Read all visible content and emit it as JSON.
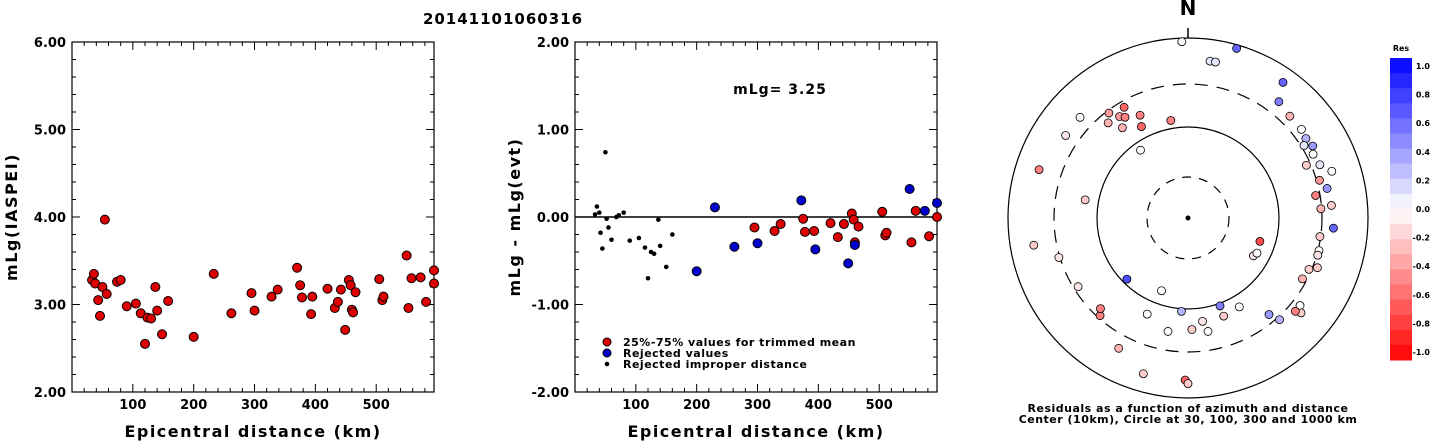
{
  "title": "20141101060316",
  "chart_data": [
    {
      "type": "scatter",
      "xlabel": "Epicentral distance (km)",
      "ylabel": "mLg(IASPEI)",
      "xlim": [
        0,
        595
      ],
      "ylim": [
        2.0,
        6.0
      ],
      "x_ticks": [
        "100",
        "200",
        "300",
        "400",
        "500"
      ],
      "y_ticks": [
        "2.00",
        "3.00",
        "4.00",
        "5.00",
        "6.00"
      ],
      "series": [
        {
          "color": "#dd0000",
          "points": [
            [
              33,
              3.28
            ],
            [
              36,
              3.35
            ],
            [
              38,
              3.24
            ],
            [
              43,
              3.05
            ],
            [
              46,
              2.87
            ],
            [
              50,
              3.2
            ],
            [
              54,
              3.97
            ],
            [
              57,
              3.12
            ],
            [
              74,
              3.26
            ],
            [
              80,
              3.28
            ],
            [
              90,
              2.98
            ],
            [
              105,
              3.01
            ],
            [
              113,
              2.9
            ],
            [
              120,
              2.55
            ],
            [
              124,
              2.85
            ],
            [
              130,
              2.84
            ],
            [
              137,
              3.2
            ],
            [
              140,
              2.93
            ],
            [
              148,
              2.66
            ],
            [
              158,
              3.04
            ],
            [
              200,
              2.63
            ],
            [
              233,
              3.35
            ],
            [
              262,
              2.9
            ],
            [
              295,
              3.13
            ],
            [
              300,
              2.93
            ],
            [
              328,
              3.09
            ],
            [
              338,
              3.17
            ],
            [
              370,
              3.42
            ],
            [
              375,
              3.22
            ],
            [
              378,
              3.08
            ],
            [
              393,
              2.89
            ],
            [
              395,
              3.09
            ],
            [
              420,
              3.18
            ],
            [
              432,
              2.96
            ],
            [
              437,
              3.03
            ],
            [
              442,
              3.17
            ],
            [
              449,
              2.71
            ],
            [
              455,
              3.28
            ],
            [
              458,
              3.22
            ],
            [
              460,
              2.94
            ],
            [
              462,
              2.91
            ],
            [
              466,
              3.14
            ],
            [
              505,
              3.29
            ],
            [
              510,
              3.05
            ],
            [
              512,
              3.09
            ],
            [
              550,
              3.56
            ],
            [
              553,
              2.96
            ],
            [
              558,
              3.3
            ],
            [
              573,
              3.31
            ],
            [
              582,
              3.03
            ],
            [
              595,
              3.39
            ],
            [
              595,
              3.24
            ]
          ]
        }
      ]
    },
    {
      "type": "scatter",
      "xlabel": "Epicentral distance (km)",
      "ylabel": "mLg - mLg(evt)",
      "xlim": [
        0,
        595
      ],
      "ylim": [
        -2.0,
        2.0
      ],
      "x_ticks": [
        "100",
        "200",
        "300",
        "400",
        "500"
      ],
      "y_ticks": [
        "-2.00",
        "-1.00",
        "0.00",
        "1.00",
        "2.00"
      ],
      "annotation": "mLg= 3.25",
      "reference_line": 0.0,
      "legend": [
        "25%-75% values for trimmed mean",
        "Rejected values",
        "Rejected improper distance"
      ],
      "series": [
        {
          "name": "25%-75% values for trimmed mean",
          "color": "#dd0000",
          "points": [
            [
              295,
              -0.12
            ],
            [
              328,
              -0.16
            ],
            [
              338,
              -0.08
            ],
            [
              375,
              -0.02
            ],
            [
              378,
              -0.17
            ],
            [
              393,
              -0.16
            ],
            [
              420,
              -0.07
            ],
            [
              432,
              -0.23
            ],
            [
              442,
              -0.08
            ],
            [
              455,
              0.04
            ],
            [
              458,
              -0.03
            ],
            [
              460,
              -0.29
            ],
            [
              466,
              -0.11
            ],
            [
              505,
              0.06
            ],
            [
              510,
              -0.21
            ],
            [
              512,
              -0.18
            ],
            [
              553,
              -0.29
            ],
            [
              560,
              0.07
            ],
            [
              582,
              -0.22
            ],
            [
              595,
              0.0
            ]
          ]
        },
        {
          "name": "Rejected values",
          "color": "#0000cc",
          "points": [
            [
              200,
              -0.62
            ],
            [
              230,
              0.11
            ],
            [
              262,
              -0.34
            ],
            [
              300,
              -0.3
            ],
            [
              372,
              0.19
            ],
            [
              395,
              -0.37
            ],
            [
              449,
              -0.53
            ],
            [
              460,
              -0.32
            ],
            [
              550,
              0.32
            ],
            [
              575,
              0.07
            ],
            [
              595,
              0.16
            ]
          ]
        },
        {
          "name": "Rejected improper distance",
          "color": "#000000",
          "points": [
            [
              33,
              0.03
            ],
            [
              36,
              0.12
            ],
            [
              40,
              0.05
            ],
            [
              42,
              -0.18
            ],
            [
              45,
              -0.36
            ],
            [
              50,
              0.74
            ],
            [
              52,
              -0.02
            ],
            [
              55,
              -0.12
            ],
            [
              60,
              -0.26
            ],
            [
              68,
              0.0
            ],
            [
              72,
              0.02
            ],
            [
              80,
              0.05
            ],
            [
              90,
              -0.27
            ],
            [
              105,
              -0.24
            ],
            [
              115,
              -0.35
            ],
            [
              120,
              -0.7
            ],
            [
              125,
              -0.4
            ],
            [
              130,
              -0.42
            ],
            [
              137,
              -0.03
            ],
            [
              140,
              -0.33
            ],
            [
              150,
              -0.57
            ],
            [
              160,
              -0.2
            ]
          ]
        }
      ]
    },
    {
      "type": "scatter",
      "subtype": "polar",
      "north_label": "N",
      "caption_line1": "Residuals as a function of azimuth and distance",
      "caption_line2": "Center (10km), Circle at 30, 100, 300 and 1000 km",
      "colorbar_title": "Res",
      "colorbar_ticks": [
        "1.0",
        "0.8",
        "0.6",
        "0.4",
        "0.2",
        "0.0",
        "-0.2",
        "-0.4",
        "-0.6",
        "-0.8",
        "-1.0"
      ],
      "stations": [
        {
          "az": -2,
          "r": 0.98,
          "res": 0.0
        },
        {
          "az": 16,
          "r": 0.98,
          "res": 0.6
        },
        {
          "az": 8,
          "r": 0.88,
          "res": 0.1
        },
        {
          "az": 10,
          "r": 0.88,
          "res": 0.1
        },
        {
          "az": 35,
          "r": 0.92,
          "res": 0.6
        },
        {
          "az": 38,
          "r": 0.82,
          "res": 0.5
        },
        {
          "az": 45,
          "r": 0.8,
          "res": -0.3
        },
        {
          "az": 52,
          "r": 0.8,
          "res": 0.0
        },
        {
          "az": 56,
          "r": 0.79,
          "res": 0.3
        },
        {
          "az": 58,
          "r": 0.76,
          "res": 0.1
        },
        {
          "az": 60,
          "r": 0.8,
          "res": 0.4
        },
        {
          "az": 63,
          "r": 0.78,
          "res": 0.0
        },
        {
          "az": 66,
          "r": 0.72,
          "res": -0.2
        },
        {
          "az": 68,
          "r": 0.79,
          "res": 0.1
        },
        {
          "az": 72,
          "r": 0.84,
          "res": 0.0
        },
        {
          "az": 74,
          "r": 0.76,
          "res": -0.4
        },
        {
          "az": 78,
          "r": 0.79,
          "res": 0.4
        },
        {
          "az": 80,
          "r": 0.72,
          "res": -0.5
        },
        {
          "az": 85,
          "r": 0.8,
          "res": -0.2
        },
        {
          "az": 86,
          "r": 0.74,
          "res": -0.3
        },
        {
          "az": 94,
          "r": 0.81,
          "res": 0.6
        },
        {
          "az": 98,
          "r": 0.74,
          "res": -0.2
        },
        {
          "az": 104,
          "r": 0.75,
          "res": 0.0
        },
        {
          "az": 106,
          "r": 0.75,
          "res": -0.1
        },
        {
          "az": 111,
          "r": 0.77,
          "res": -0.2
        },
        {
          "az": 113,
          "r": 0.73,
          "res": -0.2
        },
        {
          "az": 118,
          "r": 0.72,
          "res": -0.3
        },
        {
          "az": 128,
          "r": 0.79,
          "res": 0.0
        },
        {
          "az": 130,
          "r": 0.82,
          "res": -0.2
        },
        {
          "az": 131,
          "r": 0.79,
          "res": -0.5
        },
        {
          "az": 138,
          "r": 0.76,
          "res": 0.3
        },
        {
          "az": 140,
          "r": 0.7,
          "res": 0.4
        },
        {
          "az": 181,
          "r": 0.9,
          "res": -0.6
        },
        {
          "az": 180,
          "r": 0.92,
          "res": -0.2
        },
        {
          "az": 196,
          "r": 0.9,
          "res": -0.2
        },
        {
          "az": 208,
          "r": 0.82,
          "res": -0.3
        },
        {
          "az": 222,
          "r": 0.73,
          "res": -0.5
        },
        {
          "az": 224,
          "r": 0.7,
          "res": -0.5
        },
        {
          "az": 238,
          "r": 0.72,
          "res": -0.1
        },
        {
          "az": 253,
          "r": 0.75,
          "res": -0.1
        },
        {
          "az": 260,
          "r": 0.87,
          "res": -0.2
        },
        {
          "az": 280,
          "r": 0.58,
          "res": -0.2
        },
        {
          "az": 288,
          "r": 0.87,
          "res": -0.5
        },
        {
          "az": 304,
          "r": 0.82,
          "res": -0.1
        },
        {
          "az": 313,
          "r": 0.82,
          "res": 0.0
        },
        {
          "az": 320,
          "r": 0.69,
          "res": -0.3
        },
        {
          "az": 323,
          "r": 0.73,
          "res": -0.4
        },
        {
          "az": 324,
          "r": 0.62,
          "res": -0.3
        },
        {
          "az": 326,
          "r": 0.68,
          "res": -0.4
        },
        {
          "az": 328,
          "r": 0.66,
          "res": -0.5
        },
        {
          "az": 330,
          "r": 0.71,
          "res": -0.6
        },
        {
          "az": 335,
          "r": 0.63,
          "res": -0.5
        },
        {
          "az": 333,
          "r": 0.57,
          "res": -0.6
        },
        {
          "az": 325,
          "r": 0.46,
          "res": 0.0
        },
        {
          "az": 350,
          "r": 0.55,
          "res": -0.5
        },
        {
          "az": 120,
          "r": 0.42,
          "res": -0.1
        },
        {
          "az": 117,
          "r": 0.43,
          "res": 0.0
        },
        {
          "az": 108,
          "r": 0.42,
          "res": -0.7
        },
        {
          "az": 225,
          "r": 0.48,
          "res": 0.7
        },
        {
          "az": 200,
          "r": 0.43,
          "res": 0.0
        },
        {
          "az": 203,
          "r": 0.58,
          "res": 0.0
        },
        {
          "az": 190,
          "r": 0.64,
          "res": 0.0
        },
        {
          "az": 172,
          "r": 0.58,
          "res": -0.1
        },
        {
          "az": 170,
          "r": 0.64,
          "res": 0.0
        },
        {
          "az": 184,
          "r": 0.52,
          "res": 0.3
        },
        {
          "az": 160,
          "r": 0.58,
          "res": -0.2
        },
        {
          "az": 160,
          "r": 0.52,
          "res": 0.5
        },
        {
          "az": 150,
          "r": 0.57,
          "res": 0.0
        },
        {
          "az": 178,
          "r": 0.62,
          "res": -0.2
        }
      ]
    }
  ]
}
